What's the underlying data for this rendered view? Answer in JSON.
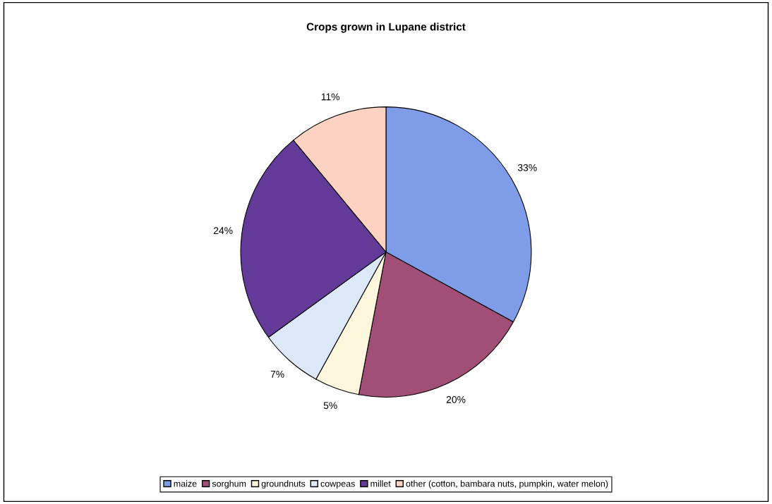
{
  "chart_data": {
    "type": "pie",
    "title": "Crops grown in Lupane district",
    "categories": [
      "maize",
      "sorghum",
      "groundnuts",
      "cowpeas",
      "millet",
      "other (cotton, bambara nuts, pumpkin, water melon)"
    ],
    "values": [
      33,
      20,
      5,
      7,
      24,
      11
    ],
    "colors": [
      "#7f9ce8",
      "#a24f78",
      "#fbf6dc",
      "#dce8f8",
      "#643a98",
      "#fcd2c2"
    ],
    "value_labels": [
      "33%",
      "20%",
      "5%",
      "7%",
      "24%",
      "11%"
    ],
    "legend": "bottom"
  }
}
